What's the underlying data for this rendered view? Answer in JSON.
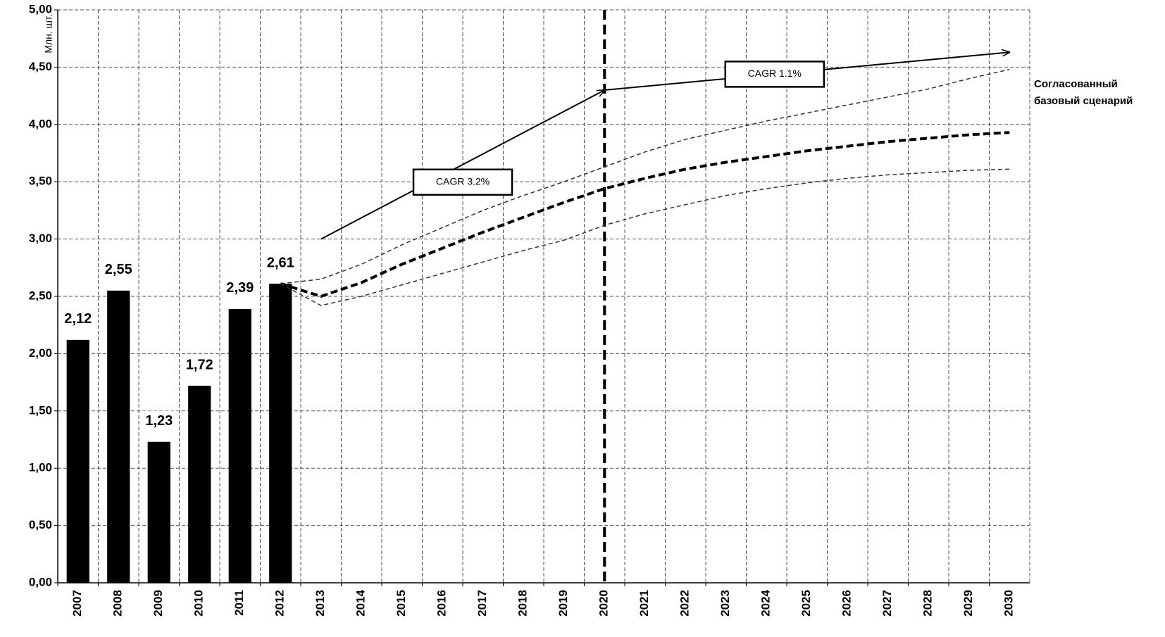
{
  "chart_data": {
    "type": "bar",
    "y_label": "Млн. шт.",
    "categories": [
      "2007",
      "2008",
      "2009",
      "2010",
      "2011",
      "2012",
      "2013",
      "2014",
      "2015",
      "2016",
      "2017",
      "2018",
      "2019",
      "2020",
      "2021",
      "2022",
      "2023",
      "2024",
      "2025",
      "2026",
      "2027",
      "2028",
      "2029",
      "2030"
    ],
    "values": [
      2.12,
      2.55,
      1.23,
      1.72,
      2.39,
      2.61,
      null,
      null,
      null,
      null,
      null,
      null,
      null,
      null,
      null,
      null,
      null,
      null,
      null,
      null,
      null,
      null,
      null,
      null
    ],
    "value_labels": [
      "2,12",
      "2,55",
      "1,23",
      "1,72",
      "2,39",
      "2,61",
      null,
      null,
      null,
      null,
      null,
      null,
      null,
      null,
      null,
      null,
      null,
      null,
      null,
      null,
      null,
      null,
      null,
      null
    ],
    "color": "#000000",
    "lines": [
      {
        "values": [
          null,
          null,
          null,
          null,
          null,
          2.61,
          2.65,
          2.78,
          2.95,
          3.1,
          3.25,
          3.38,
          3.5,
          3.63,
          3.76,
          3.87,
          3.95,
          4.03,
          4.1,
          4.17,
          4.24,
          4.31,
          4.4,
          4.48
        ],
        "color": "#333333",
        "width": 1.5,
        "dash": "6 4"
      },
      {
        "values": [
          null,
          null,
          null,
          null,
          null,
          2.61,
          2.5,
          2.62,
          2.78,
          2.92,
          3.06,
          3.19,
          3.32,
          3.44,
          3.53,
          3.61,
          3.67,
          3.72,
          3.77,
          3.81,
          3.85,
          3.88,
          3.91,
          3.93
        ],
        "color": "#000000",
        "width": 4,
        "dash": "10 5"
      },
      {
        "values": [
          null,
          null,
          null,
          null,
          null,
          2.61,
          2.42,
          2.5,
          2.6,
          2.7,
          2.8,
          2.9,
          2.99,
          3.12,
          3.22,
          3.3,
          3.38,
          3.44,
          3.49,
          3.53,
          3.56,
          3.58,
          3.6,
          3.61
        ],
        "color": "#333333",
        "width": 1.5,
        "dash": "6 4"
      }
    ],
    "reference_line": {
      "x": "2020"
    },
    "annotations": [
      {
        "label": "CAGR 3.2%",
        "from": {
          "x": "2013",
          "y": 3.0
        },
        "to": {
          "x": "2020",
          "y": 4.3
        }
      },
      {
        "label": "CAGR 1.1%",
        "from": {
          "x": "2020",
          "y": 4.3
        },
        "to": {
          "x": "2030",
          "y": 4.63
        }
      }
    ],
    "scenario_label": [
      "Согласованный",
      "базовый сценарий"
    ],
    "ylim": [
      0,
      5
    ],
    "yticks": [
      {
        "value": 0,
        "label": "0,00"
      },
      {
        "value": 0.5,
        "label": "0,50"
      },
      {
        "value": 1,
        "label": "1,00"
      },
      {
        "value": 1.5,
        "label": "1,50"
      },
      {
        "value": 2,
        "label": "2,00"
      },
      {
        "value": 2.5,
        "label": "2,50"
      },
      {
        "value": 3,
        "label": "3,00"
      },
      {
        "value": 3.5,
        "label": "3,50"
      },
      {
        "value": 4,
        "label": "4,00"
      },
      {
        "value": 4.5,
        "label": "4,50"
      },
      {
        "value": 5,
        "label": "5,00"
      }
    ],
    "grid": true
  }
}
